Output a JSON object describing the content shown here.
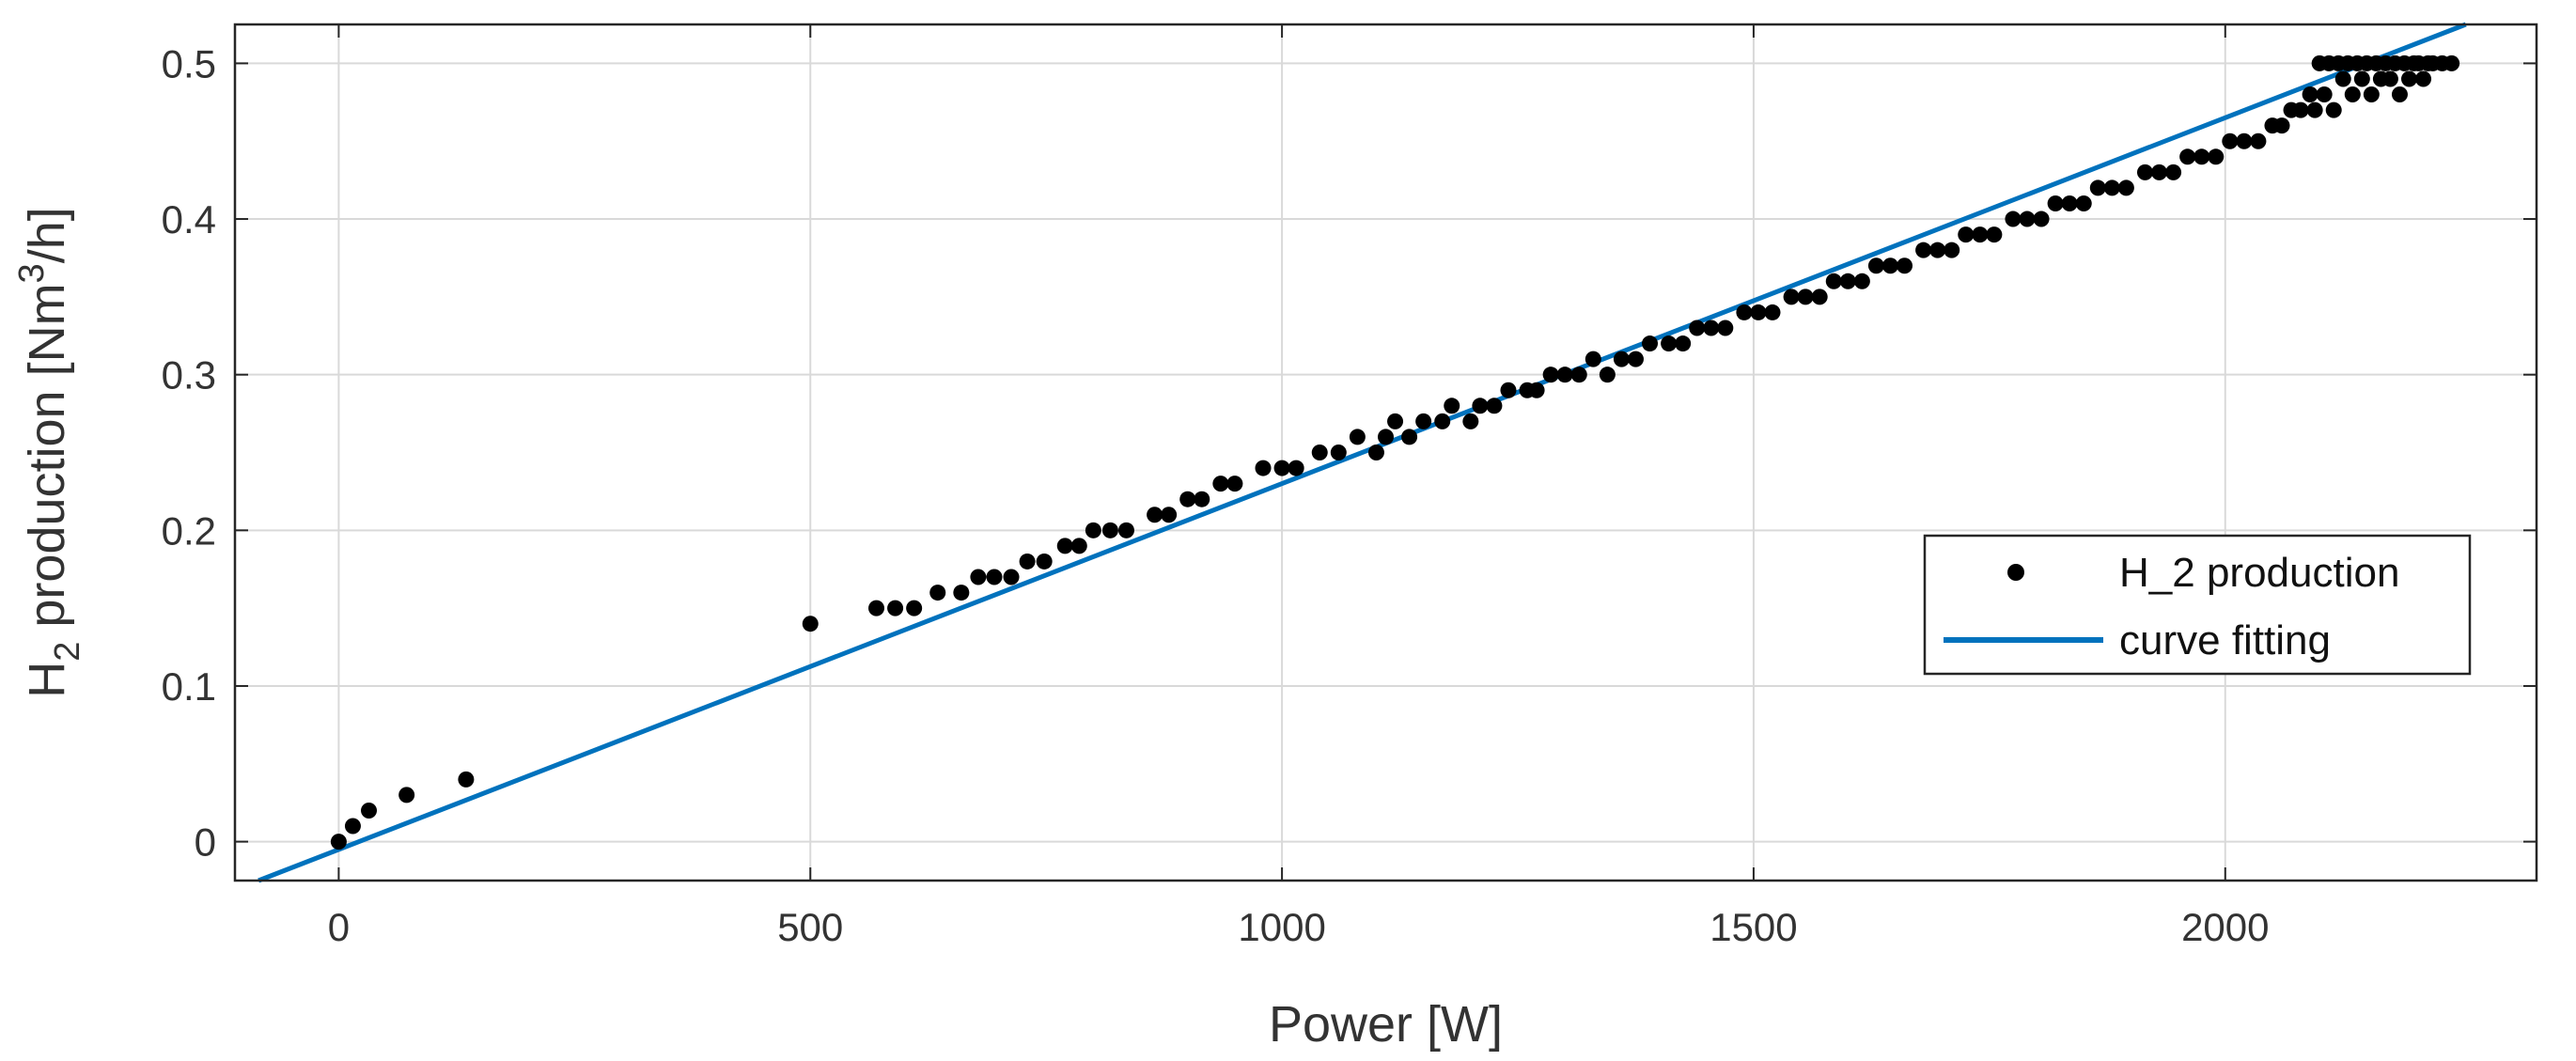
{
  "chart_data": {
    "type": "scatter",
    "xlabel": "Power [W]",
    "ylabel": {
      "main": "H",
      "sub": "2",
      "rest": " production [Nm",
      "sup": "3",
      "end": "/h]"
    },
    "xlim": [
      -110,
      2330
    ],
    "ylim": [
      -0.025,
      0.525
    ],
    "xticks": [
      0,
      500,
      1000,
      1500,
      2000
    ],
    "yticks": [
      0,
      0.1,
      0.2,
      0.3,
      0.4,
      0.5
    ],
    "xtick_labels": [
      "0",
      "500",
      "1000",
      "1500",
      "2000"
    ],
    "ytick_labels": [
      "0",
      "0.1",
      "0.2",
      "0.3",
      "0.4",
      "0.5"
    ],
    "grid": true,
    "legend": {
      "position": "right",
      "entries": [
        "H_2 production",
        "curve fitting"
      ]
    },
    "colors": {
      "points": "#000000",
      "fit_line": "#0072BD",
      "grid": "#d9d9d9",
      "axes": "#262626"
    },
    "series": [
      {
        "name": "H_2 production",
        "kind": "scatter",
        "points": [
          [
            0,
            0.0
          ],
          [
            15,
            0.01
          ],
          [
            32,
            0.02
          ],
          [
            72,
            0.03
          ],
          [
            135,
            0.04
          ],
          [
            500,
            0.14
          ],
          [
            570,
            0.15
          ],
          [
            590,
            0.15
          ],
          [
            610,
            0.15
          ],
          [
            635,
            0.16
          ],
          [
            660,
            0.16
          ],
          [
            678,
            0.17
          ],
          [
            695,
            0.17
          ],
          [
            713,
            0.17
          ],
          [
            730,
            0.18
          ],
          [
            748,
            0.18
          ],
          [
            770,
            0.19
          ],
          [
            785,
            0.19
          ],
          [
            800,
            0.2
          ],
          [
            818,
            0.2
          ],
          [
            835,
            0.2
          ],
          [
            865,
            0.21
          ],
          [
            880,
            0.21
          ],
          [
            900,
            0.22
          ],
          [
            915,
            0.22
          ],
          [
            935,
            0.23
          ],
          [
            950,
            0.23
          ],
          [
            980,
            0.24
          ],
          [
            1000,
            0.24
          ],
          [
            1015,
            0.24
          ],
          [
            1040,
            0.25
          ],
          [
            1060,
            0.25
          ],
          [
            1080,
            0.26
          ],
          [
            1100,
            0.25
          ],
          [
            1110,
            0.26
          ],
          [
            1120,
            0.27
          ],
          [
            1135,
            0.26
          ],
          [
            1150,
            0.27
          ],
          [
            1170,
            0.27
          ],
          [
            1180,
            0.28
          ],
          [
            1200,
            0.27
          ],
          [
            1210,
            0.28
          ],
          [
            1225,
            0.28
          ],
          [
            1240,
            0.29
          ],
          [
            1260,
            0.29
          ],
          [
            1270,
            0.29
          ],
          [
            1285,
            0.3
          ],
          [
            1300,
            0.3
          ],
          [
            1315,
            0.3
          ],
          [
            1330,
            0.31
          ],
          [
            1345,
            0.3
          ],
          [
            1360,
            0.31
          ],
          [
            1375,
            0.31
          ],
          [
            1390,
            0.32
          ],
          [
            1410,
            0.32
          ],
          [
            1425,
            0.32
          ],
          [
            1440,
            0.33
          ],
          [
            1455,
            0.33
          ],
          [
            1470,
            0.33
          ],
          [
            1490,
            0.34
          ],
          [
            1505,
            0.34
          ],
          [
            1520,
            0.34
          ],
          [
            1540,
            0.35
          ],
          [
            1555,
            0.35
          ],
          [
            1570,
            0.35
          ],
          [
            1585,
            0.36
          ],
          [
            1600,
            0.36
          ],
          [
            1615,
            0.36
          ],
          [
            1630,
            0.37
          ],
          [
            1645,
            0.37
          ],
          [
            1660,
            0.37
          ],
          [
            1680,
            0.38
          ],
          [
            1695,
            0.38
          ],
          [
            1710,
            0.38
          ],
          [
            1725,
            0.39
          ],
          [
            1740,
            0.39
          ],
          [
            1755,
            0.39
          ],
          [
            1775,
            0.4
          ],
          [
            1790,
            0.4
          ],
          [
            1805,
            0.4
          ],
          [
            1820,
            0.41
          ],
          [
            1835,
            0.41
          ],
          [
            1850,
            0.41
          ],
          [
            1865,
            0.42
          ],
          [
            1880,
            0.42
          ],
          [
            1895,
            0.42
          ],
          [
            1915,
            0.43
          ],
          [
            1930,
            0.43
          ],
          [
            1945,
            0.43
          ],
          [
            1960,
            0.44
          ],
          [
            1975,
            0.44
          ],
          [
            1990,
            0.44
          ],
          [
            2005,
            0.45
          ],
          [
            2020,
            0.45
          ],
          [
            2035,
            0.45
          ],
          [
            2050,
            0.46
          ],
          [
            2060,
            0.46
          ],
          [
            2070,
            0.47
          ],
          [
            2080,
            0.47
          ],
          [
            2090,
            0.48
          ],
          [
            2095,
            0.47
          ],
          [
            2100,
            0.5
          ],
          [
            2105,
            0.48
          ],
          [
            2110,
            0.5
          ],
          [
            2115,
            0.47
          ],
          [
            2120,
            0.5
          ],
          [
            2125,
            0.49
          ],
          [
            2130,
            0.5
          ],
          [
            2135,
            0.48
          ],
          [
            2140,
            0.5
          ],
          [
            2145,
            0.49
          ],
          [
            2150,
            0.5
          ],
          [
            2155,
            0.48
          ],
          [
            2160,
            0.5
          ],
          [
            2165,
            0.49
          ],
          [
            2170,
            0.5
          ],
          [
            2175,
            0.49
          ],
          [
            2180,
            0.5
          ],
          [
            2185,
            0.48
          ],
          [
            2190,
            0.5
          ],
          [
            2195,
            0.49
          ],
          [
            2200,
            0.5
          ],
          [
            2205,
            0.5
          ],
          [
            2210,
            0.49
          ],
          [
            2215,
            0.5
          ],
          [
            2220,
            0.5
          ],
          [
            2230,
            0.5
          ],
          [
            2240,
            0.5
          ]
        ]
      },
      {
        "name": "curve fitting",
        "kind": "line",
        "points": [
          [
            -85,
            -0.025
          ],
          [
            2255,
            0.525
          ]
        ]
      }
    ]
  }
}
